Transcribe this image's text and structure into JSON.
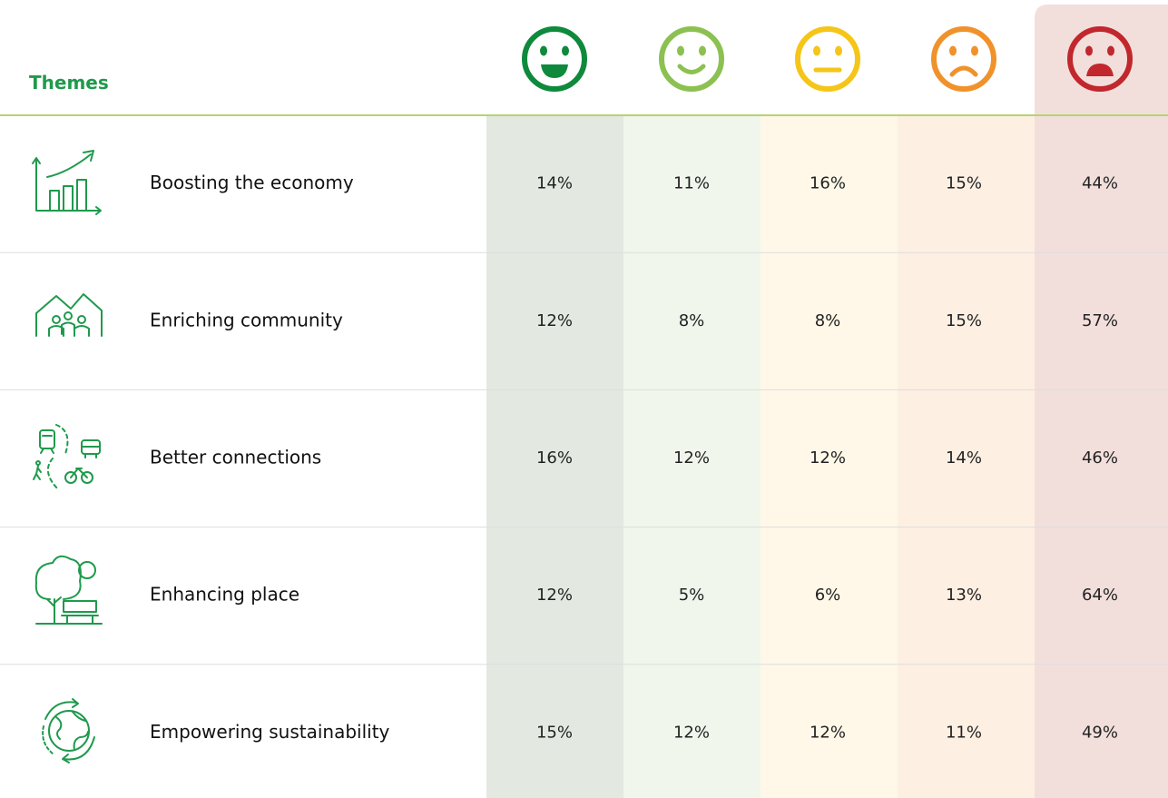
{
  "table": {
    "header": "Themes",
    "rows": [
      [
        "Boosting the economy",
        "14%",
        "11%",
        "16%",
        "15%",
        "44%"
      ],
      [
        "Enriching community",
        "12%",
        "8%",
        "8%",
        "15%",
        "57%"
      ],
      [
        "Better connections",
        "16%",
        "12%",
        "12%",
        "14%",
        "46%"
      ],
      [
        "Enhancing place",
        "12%",
        "5%",
        "6%",
        "13%",
        "64%"
      ],
      [
        "Empowering sustainability",
        "15%",
        "12%",
        "12%",
        "11%",
        "49%"
      ]
    ]
  }
}
